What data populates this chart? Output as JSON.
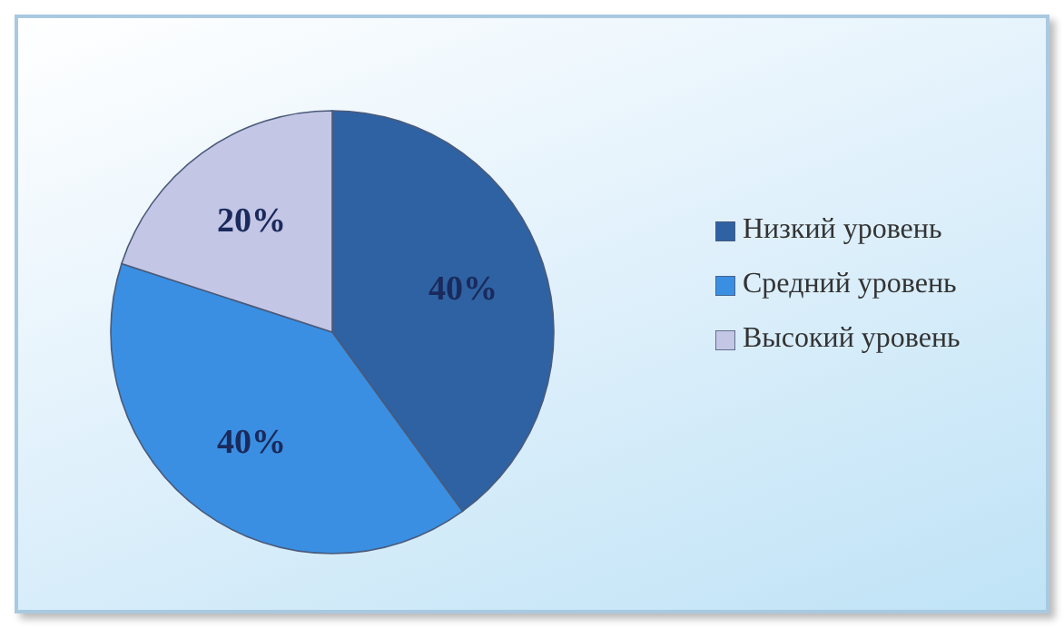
{
  "chart_data": {
    "type": "pie",
    "categories": [
      "Низкий уровень",
      "Средний уровень",
      "Высокий уровень"
    ],
    "values": [
      40,
      40,
      20
    ],
    "value_labels": [
      "40%",
      "40%",
      "20%"
    ],
    "colors": [
      "#2f62a3",
      "#3a8fe2",
      "#c4c6e6"
    ],
    "legend": "right"
  }
}
